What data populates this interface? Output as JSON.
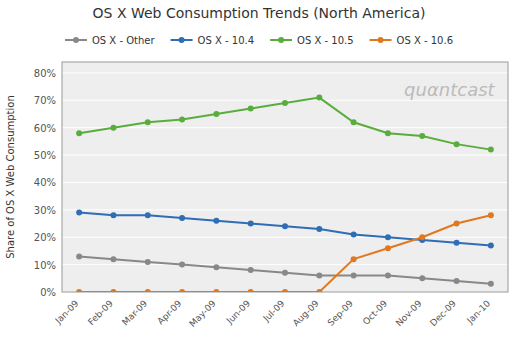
{
  "chart_data": {
    "type": "line",
    "title": "OS X Web Consumption Trends (North America)",
    "ylabel": "Share of OS X Web Consumption",
    "categories": [
      "Jan-09",
      "Feb-09",
      "Mar-09",
      "Apr-09",
      "May-09",
      "Jun-09",
      "Jul-09",
      "Aug-09",
      "Sep-09",
      "Oct-09",
      "Nov-09",
      "Dec-09",
      "Jan-10"
    ],
    "series": [
      {
        "name": "OS X - Other",
        "color": "#888888",
        "values": [
          13,
          12,
          11,
          10,
          9,
          8,
          7,
          6,
          6,
          6,
          5,
          4,
          3
        ]
      },
      {
        "name": "OS X - 10.4",
        "color": "#2f6db5",
        "values": [
          29,
          28,
          28,
          27,
          26,
          25,
          24,
          23,
          21,
          20,
          19,
          18,
          17
        ]
      },
      {
        "name": "OS X - 10.5",
        "color": "#5aad3c",
        "values": [
          58,
          60,
          62,
          63,
          65,
          67,
          69,
          71,
          62,
          58,
          57,
          54,
          52
        ]
      },
      {
        "name": "OS X - 10.6",
        "color": "#e07820",
        "values": [
          0,
          0,
          0,
          0,
          0,
          0,
          0,
          0,
          12,
          16,
          20,
          25,
          28
        ]
      }
    ],
    "ylim": [
      0,
      84
    ],
    "yticks": [
      {
        "value": 0,
        "label": "0%"
      },
      {
        "value": 10,
        "label": "10%"
      },
      {
        "value": 20,
        "label": "20%"
      },
      {
        "value": 30,
        "label": "30%"
      },
      {
        "value": 40,
        "label": "40%"
      },
      {
        "value": 50,
        "label": "50%"
      },
      {
        "value": 60,
        "label": "60%"
      },
      {
        "value": 70,
        "label": "70%"
      },
      {
        "value": 80,
        "label": "80%"
      }
    ],
    "grid": true,
    "legend": "top",
    "marker": "circle",
    "annotations": [
      "quαntcast"
    ]
  }
}
